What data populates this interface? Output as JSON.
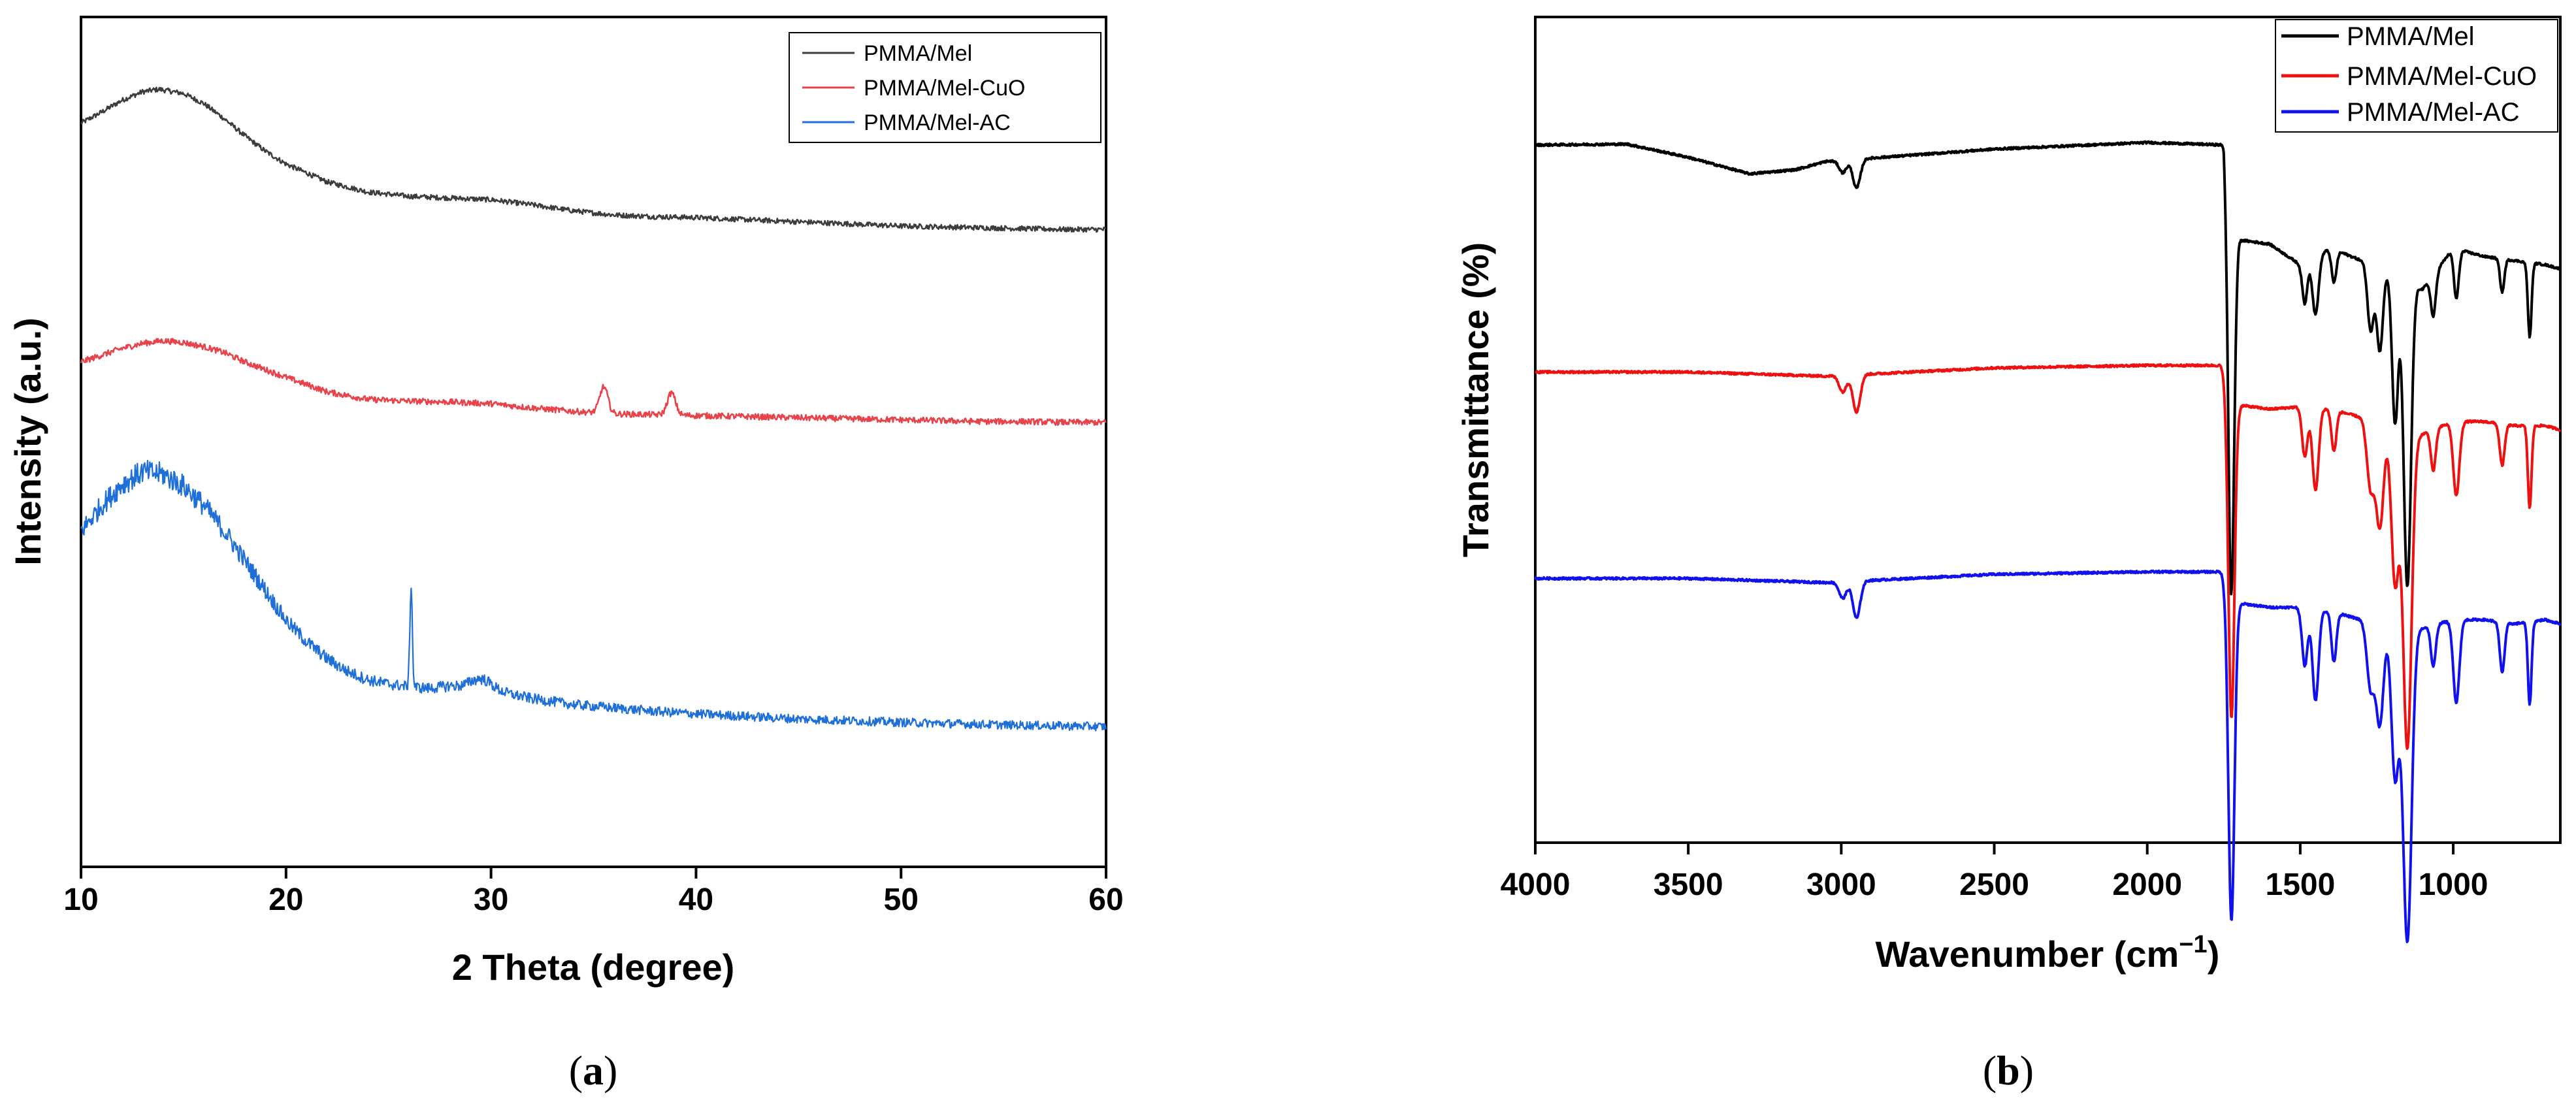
{
  "chart_data": [
    {
      "type": "line",
      "panel": "a",
      "panel_label": "a",
      "xlabel": "2 Theta (degree)",
      "ylabel": "Intensity (a.u.)",
      "xlim": [
        10,
        60
      ],
      "xticks": [
        10,
        20,
        30,
        40,
        50,
        60
      ],
      "ylim": [
        0,
        100
      ],
      "legend_position": "top-right",
      "colors": {
        "PMMA/Mel": "#3c3c3c",
        "PMMA/Mel-CuO": "#e8424a",
        "PMMA/Mel-AC": "#1f6fd9"
      },
      "series": [
        {
          "name": "PMMA/Mel",
          "noise": 0.3,
          "x": [
            10,
            11,
            12,
            13,
            13.8,
            15,
            16,
            17,
            18,
            19,
            20,
            22,
            24,
            26,
            28,
            30,
            32,
            34,
            36,
            38,
            40,
            42,
            44,
            46,
            48,
            50,
            52,
            54,
            56,
            58,
            60
          ],
          "y": [
            87.5,
            88.8,
            90.2,
            91.2,
            91.5,
            91.0,
            89.8,
            88.0,
            86.0,
            84.2,
            82.7,
            80.6,
            79.4,
            78.9,
            78.7,
            78.5,
            77.9,
            77.2,
            76.7,
            76.5,
            76.4,
            76.2,
            76.0,
            75.8,
            75.6,
            75.4,
            75.3,
            75.2,
            75.1,
            75.0,
            75.0
          ],
          "peaks": []
        },
        {
          "name": "PMMA/Mel-CuO",
          "noise": 0.35,
          "x": [
            10,
            11,
            12,
            13,
            14,
            15,
            16,
            17,
            18,
            20,
            22,
            24,
            26,
            28,
            30,
            32,
            34,
            36,
            38,
            40,
            42,
            44,
            46,
            48,
            50,
            52,
            54,
            56,
            58,
            60
          ],
          "y": [
            59.4,
            60.2,
            61.0,
            61.6,
            61.9,
            61.7,
            61.2,
            60.5,
            59.4,
            57.6,
            55.9,
            55.0,
            54.8,
            54.7,
            54.5,
            54.0,
            53.6,
            53.3,
            53.2,
            53.1,
            53.0,
            52.9,
            52.8,
            52.7,
            52.6,
            52.5,
            52.4,
            52.4,
            52.3,
            52.3
          ],
          "peaks": [
            [
              35.5,
              3.1,
              0.2
            ],
            [
              38.8,
              2.6,
              0.2
            ]
          ]
        },
        {
          "name": "PMMA/Mel-AC",
          "noise": 1.4,
          "x": [
            10,
            11,
            12,
            13,
            14,
            15,
            16,
            17,
            18,
            19,
            20,
            21,
            22,
            23,
            24,
            25,
            26,
            27,
            28,
            30,
            32,
            34,
            36,
            38,
            40,
            45,
            50,
            55,
            60
          ],
          "y": [
            39.5,
            42.5,
            45.0,
            46.5,
            46.2,
            44.8,
            42.5,
            39.5,
            36.0,
            32.5,
            29.0,
            26.5,
            24.5,
            23.0,
            22.0,
            21.5,
            21.2,
            21.0,
            21.3,
            20.8,
            19.8,
            19.1,
            18.7,
            18.3,
            18.0,
            17.4,
            17.0,
            16.7,
            16.5
          ],
          "peaks": [
            [
              26.1,
              12.0,
              0.06
            ],
            [
              29.5,
              1.2,
              0.5
            ]
          ]
        }
      ],
      "legend": [
        "PMMA/Mel",
        "PMMA/Mel-CuO",
        "PMMA/Mel-AC"
      ]
    },
    {
      "type": "line",
      "panel": "b",
      "panel_label": "b",
      "xlabel_main": "Wavenumber (cm",
      "xlabel_sup": "−1",
      "xlabel_close": ")",
      "ylabel": "Transmittance  (%)",
      "xlim": [
        4000,
        650
      ],
      "xticks": [
        4000,
        3500,
        3000,
        2500,
        2000,
        1500,
        1000
      ],
      "ylim": [
        0,
        100
      ],
      "legend_position": "top-right",
      "colors": {
        "PMMA/Mel": "#000000",
        "PMMA/Mel-CuO": "#ee1111",
        "PMMA/Mel-AC": "#1111ee"
      },
      "series": [
        {
          "name": "PMMA/Mel",
          "baseline_x": [
            4000,
            3700,
            3500,
            3300,
            3150,
            3050,
            2500,
            2000,
            1750,
            1730,
            1700,
            1600,
            1500,
            1400,
            1300,
            1200,
            1100,
            1000,
            900,
            800,
            700,
            650
          ],
          "baseline_y": [
            84.5,
            84.6,
            83.0,
            81.0,
            81.5,
            82.5,
            84.0,
            84.8,
            84.5,
            66.0,
            73.0,
            72.5,
            70.0,
            72.0,
            70.5,
            69.0,
            67.0,
            72.0,
            71.0,
            70.5,
            70.0,
            69.5
          ],
          "bands": [
            [
              2995,
              1.5,
              12
            ],
            [
              2950,
              3.5,
              12
            ],
            [
              1725,
              37,
              9
            ],
            [
              1485,
              5,
              8
            ],
            [
              1450,
              7,
              10
            ],
            [
              1390,
              4,
              8
            ],
            [
              1270,
              8,
              10
            ],
            [
              1240,
              10,
              10
            ],
            [
              1190,
              18,
              10
            ],
            [
              1150,
              37,
              12
            ],
            [
              1065,
              5,
              8
            ],
            [
              990,
              6,
              8
            ],
            [
              840,
              4,
              7
            ],
            [
              750,
              9,
              6
            ]
          ]
        },
        {
          "name": "PMMA/Mel-CuO",
          "baseline_x": [
            4000,
            3500,
            3050,
            2500,
            2000,
            1760,
            1700,
            1600,
            1500,
            1400,
            1300,
            1200,
            1100,
            1000,
            900,
            800,
            700,
            650
          ],
          "baseline_y": [
            57.0,
            57.0,
            56.5,
            57.5,
            57.8,
            57.8,
            53.0,
            52.5,
            52.8,
            52.5,
            51.5,
            49.5,
            49.5,
            51.0,
            51.0,
            50.5,
            50.5,
            50.0
          ],
          "bands": [
            [
              2995,
              2,
              12
            ],
            [
              2950,
              4.5,
              12
            ],
            [
              1725,
              40,
              10
            ],
            [
              1485,
              6,
              9
            ],
            [
              1450,
              10,
              10
            ],
            [
              1390,
              5,
              8
            ],
            [
              1270,
              8,
              12
            ],
            [
              1240,
              12,
              12
            ],
            [
              1190,
              18,
              12
            ],
            [
              1150,
              38,
              14
            ],
            [
              1065,
              5,
              8
            ],
            [
              990,
              9,
              10
            ],
            [
              840,
              5,
              8
            ],
            [
              750,
              10,
              6
            ]
          ]
        },
        {
          "name": "PMMA/Mel-AC",
          "baseline_x": [
            4000,
            3500,
            3050,
            2500,
            2000,
            1760,
            1700,
            1600,
            1500,
            1400,
            1300,
            1200,
            1100,
            1000,
            900,
            800,
            700,
            650
          ],
          "baseline_y": [
            32.0,
            32.0,
            31.5,
            32.5,
            32.8,
            32.8,
            29.0,
            28.5,
            28.5,
            28.0,
            27.0,
            26.0,
            26.0,
            27.0,
            27.0,
            26.5,
            27.0,
            26.5
          ],
          "bands": [
            [
              2995,
              2,
              12
            ],
            [
              2950,
              4.5,
              12
            ],
            [
              1725,
              40,
              10
            ],
            [
              1485,
              7,
              9
            ],
            [
              1450,
              11,
              10
            ],
            [
              1390,
              6,
              8
            ],
            [
              1270,
              8,
              12
            ],
            [
              1240,
              12,
              12
            ],
            [
              1190,
              18,
              12
            ],
            [
              1150,
              38,
              14
            ],
            [
              1065,
              5,
              8
            ],
            [
              990,
              10,
              10
            ],
            [
              840,
              6,
              8
            ],
            [
              750,
              10,
              6
            ]
          ]
        }
      ],
      "legend": [
        "PMMA/Mel",
        "PMMA/Mel-CuO",
        "PMMA/Mel-AC"
      ]
    }
  ]
}
